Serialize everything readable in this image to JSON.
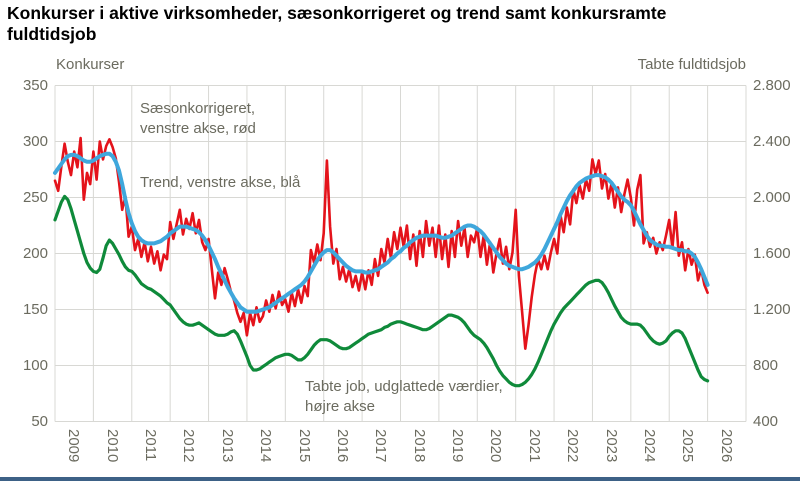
{
  "title": "Konkurser i aktive virksomheder, sæsonkorrigeret og trend samt konkursramte fuldtidsjob",
  "left_axis": {
    "title": "Konkurser",
    "ticks": [
      "350",
      "300",
      "250",
      "200",
      "150",
      "100",
      "50"
    ],
    "min": 50,
    "max": 350
  },
  "right_axis": {
    "title": "Tabte fuldtidsjob",
    "ticks": [
      "2.800",
      "2.400",
      "2.000",
      "1.600",
      "1.200",
      "800",
      "400"
    ],
    "min": 400,
    "max": 2800
  },
  "x_axis": {
    "years": [
      "2009",
      "2010",
      "2011",
      "2012",
      "2013",
      "2014",
      "2015",
      "2016",
      "2017",
      "2018",
      "2019",
      "2020",
      "2021",
      "2022",
      "2023",
      "2024",
      "2025",
      "2026"
    ]
  },
  "annotations": {
    "seasonal_line1": "Sæsonkorrigeret,",
    "seasonal_line2": "venstre akse, rød",
    "trend": "Trend, venstre akse, blå",
    "jobs_line1": "Tabte job, udglattede værdier,",
    "jobs_line2": "højre akse"
  },
  "colors": {
    "seasonal": "#e4131b",
    "trend": "#3fa7dc",
    "jobs": "#0f8a3a",
    "grid": "#d8d8d4",
    "text": "#6b6b5f",
    "footer_bar": "#3d6186"
  },
  "chart_data": {
    "type": "line",
    "x_start_year": 2009,
    "points_per_year": 12,
    "x_domain": [
      2009,
      2027
    ],
    "left_ylim": [
      50,
      350
    ],
    "right_ylim": [
      400,
      2800
    ],
    "grid": true,
    "series": [
      {
        "name": "Sæsonkorrigeret, venstre akse, rød",
        "axis": "left",
        "color": "#e4131b",
        "stroke_width": 2.6,
        "values": [
          265,
          256,
          278,
          298,
          282,
          270,
          291,
          277,
          303,
          248,
          272,
          262,
          291,
          266,
          300,
          284,
          296,
          302,
          295,
          285,
          264,
          239,
          251,
          215,
          224,
          203,
          213,
          197,
          210,
          193,
          206,
          191,
          202,
          185,
          199,
          195,
          228,
          213,
          226,
          239,
          217,
          231,
          222,
          236,
          218,
          230,
          210,
          203,
          213,
          186,
          160,
          183,
          172,
          187,
          177,
          166,
          158,
          147,
          139,
          147,
          127,
          147,
          136,
          152,
          139,
          144,
          158,
          148,
          163,
          151,
          166,
          154,
          159,
          148,
          165,
          153,
          168,
          156,
          171,
          162,
          203,
          192,
          208,
          194,
          218,
          283,
          224,
          191,
          204,
          177,
          188,
          175,
          186,
          170,
          180,
          167,
          183,
          168,
          185,
          172,
          195,
          180,
          204,
          192,
          213,
          196,
          219,
          204,
          223,
          206,
          225,
          195,
          217,
          189,
          220,
          197,
          229,
          207,
          223,
          197,
          225,
          195,
          217,
          188,
          220,
          197,
          229,
          207,
          223,
          197,
          216,
          210,
          223,
          197,
          216,
          190,
          210,
          183,
          200,
          213,
          191,
          206,
          186,
          201,
          239,
          180,
          148,
          115,
          136,
          161,
          181,
          195,
          186,
          198,
          186,
          201,
          213,
          200,
          234,
          219,
          241,
          226,
          257,
          245,
          261,
          249,
          266,
          256,
          284,
          271,
          283,
          258,
          271,
          249,
          263,
          241,
          259,
          237,
          253,
          266,
          250,
          225,
          257,
          270,
          209,
          219,
          206,
          214,
          200,
          210,
          203,
          216,
          230,
          205,
          237,
          198,
          210,
          185,
          204,
          190,
          199,
          176,
          186,
          172,
          165
        ]
      },
      {
        "name": "Trend, venstre akse, blå",
        "axis": "left",
        "color": "#3fa7dc",
        "stroke_width": 4,
        "values": [
          272,
          276,
          280,
          284,
          287,
          288,
          288,
          287,
          285,
          283,
          282,
          282,
          283,
          285,
          287,
          288,
          289,
          289,
          287,
          282,
          274,
          262,
          248,
          236,
          227,
          220,
          215,
          212,
          210,
          209,
          209,
          209,
          210,
          211,
          213,
          215,
          218,
          220,
          222,
          224,
          224,
          224,
          223,
          222,
          221,
          219,
          216,
          212,
          207,
          201,
          195,
          188,
          182,
          176,
          170,
          165,
          160,
          156,
          152,
          150,
          148,
          148,
          148,
          148,
          149,
          150,
          151,
          152,
          154,
          156,
          158,
          160,
          162,
          164,
          166,
          168,
          170,
          172,
          175,
          179,
          184,
          189,
          194,
          198,
          201,
          203,
          203,
          201,
          198,
          195,
          192,
          189,
          187,
          185,
          184,
          184,
          184,
          183,
          183,
          184,
          185,
          186,
          188,
          190,
          192,
          195,
          197,
          200,
          202,
          205,
          207,
          210,
          212,
          214,
          215,
          216,
          216,
          216,
          216,
          216,
          215,
          214,
          214,
          215,
          216,
          218,
          220,
          222,
          224,
          225,
          225,
          224,
          222,
          220,
          217,
          213,
          209,
          205,
          201,
          197,
          194,
          191,
          189,
          188,
          187,
          186,
          186,
          187,
          188,
          190,
          192,
          195,
          199,
          204,
          210,
          216,
          222,
          228,
          235,
          241,
          247,
          252,
          256,
          260,
          263,
          265,
          267,
          268,
          269,
          270,
          270,
          269,
          268,
          266,
          263,
          259,
          255,
          251,
          248,
          246,
          243,
          238,
          232,
          226,
          221,
          216,
          212,
          210,
          208,
          207,
          207,
          206,
          206,
          205,
          204,
          203,
          203,
          202,
          202,
          200,
          197,
          192,
          186,
          179,
          172
        ]
      },
      {
        "name": "Tabte job, udglattede værdier, højre akse",
        "axis": "right",
        "color": "#0f8a3a",
        "stroke_width": 3.2,
        "values": [
          1840,
          1904,
          1968,
          2008,
          1984,
          1920,
          1840,
          1760,
          1680,
          1600,
          1536,
          1496,
          1472,
          1464,
          1488,
          1568,
          1656,
          1696,
          1672,
          1632,
          1592,
          1544,
          1504,
          1480,
          1472,
          1448,
          1416,
          1384,
          1368,
          1352,
          1344,
          1328,
          1312,
          1296,
          1272,
          1248,
          1232,
          1200,
          1168,
          1136,
          1112,
          1096,
          1088,
          1088,
          1096,
          1104,
          1088,
          1072,
          1056,
          1040,
          1024,
          1016,
          1016,
          1016,
          1024,
          1040,
          1048,
          1024,
          976,
          920,
          864,
          800,
          768,
          768,
          776,
          792,
          808,
          824,
          840,
          856,
          864,
          872,
          880,
          880,
          872,
          856,
          840,
          840,
          856,
          880,
          912,
          944,
          968,
          984,
          984,
          984,
          976,
          960,
          944,
          928,
          920,
          920,
          928,
          944,
          960,
          976,
          992,
          1008,
          1024,
          1032,
          1040,
          1048,
          1056,
          1072,
          1080,
          1096,
          1104,
          1112,
          1112,
          1104,
          1096,
          1088,
          1080,
          1072,
          1064,
          1056,
          1056,
          1064,
          1080,
          1096,
          1112,
          1128,
          1144,
          1160,
          1160,
          1152,
          1144,
          1128,
          1104,
          1072,
          1040,
          1016,
          1000,
          984,
          960,
          928,
          888,
          848,
          800,
          760,
          728,
          704,
          680,
          664,
          656,
          656,
          664,
          680,
          704,
          736,
          776,
          824,
          880,
          936,
          992,
          1048,
          1096,
          1136,
          1176,
          1208,
          1232,
          1256,
          1280,
          1304,
          1328,
          1352,
          1376,
          1392,
          1400,
          1408,
          1408,
          1392,
          1360,
          1320,
          1272,
          1224,
          1184,
          1144,
          1120,
          1104,
          1096,
          1096,
          1096,
          1088,
          1064,
          1032,
          1000,
          976,
          960,
          952,
          960,
          976,
          1008,
          1032,
          1048,
          1048,
          1032,
          992,
          936,
          880,
          824,
          768,
          720,
          700,
          690
        ]
      }
    ]
  }
}
